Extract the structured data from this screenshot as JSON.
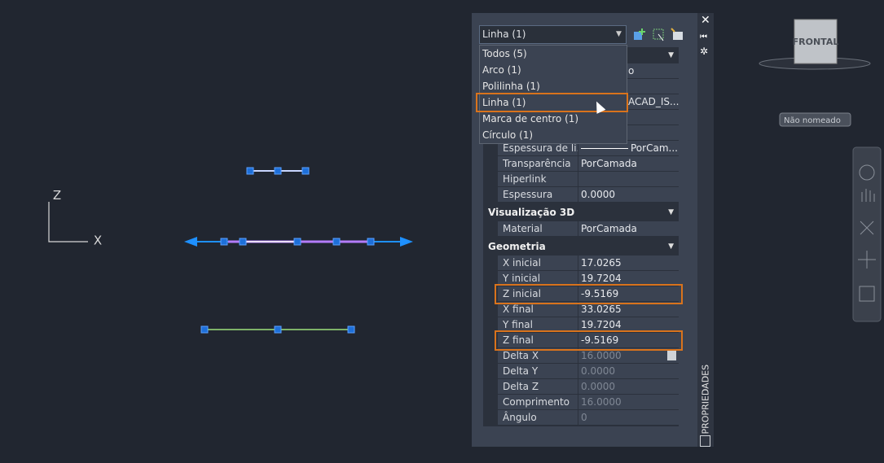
{
  "canvas": {
    "axis_z": "Z",
    "axis_x": "X",
    "viewcube": "FRONTAL",
    "view_name": "Não nomeado"
  },
  "palette": {
    "title": "PROPRIEDADES",
    "dropdown": {
      "selected": "Linha (1)",
      "options": [
        "Todos (5)",
        "Arco (1)",
        "Polilinha (1)",
        "Linha (1)",
        "Marca de centro (1)",
        "Círculo (1)"
      ]
    },
    "hidden_values": [
      "o",
      "ACAD_IS..."
    ],
    "general_rows": [
      {
        "label": "Espessura de li...",
        "value": "PorCam..."
      },
      {
        "label": "Transparência",
        "value": "PorCamada"
      },
      {
        "label": "Hiperlink",
        "value": ""
      },
      {
        "label": "Espessura",
        "value": "0.0000"
      }
    ],
    "sections": [
      {
        "title": "Visualização 3D",
        "rows": [
          {
            "label": "Material",
            "value": "PorCamada"
          }
        ]
      },
      {
        "title": "Geometria",
        "rows": [
          {
            "label": "X inicial",
            "value": "17.0265"
          },
          {
            "label": "Y inicial",
            "value": "19.7204"
          },
          {
            "label": "Z inicial",
            "value": "-9.5169"
          },
          {
            "label": "X final",
            "value": "33.0265"
          },
          {
            "label": "Y final",
            "value": "19.7204"
          },
          {
            "label": "Z final",
            "value": "-9.5169"
          },
          {
            "label": "Delta X",
            "value": "16.0000"
          },
          {
            "label": "Delta Y",
            "value": "0.0000"
          },
          {
            "label": "Delta Z",
            "value": "0.0000"
          },
          {
            "label": "Comprimento",
            "value": "16.0000"
          },
          {
            "label": "Ângulo",
            "value": "0"
          }
        ]
      }
    ]
  }
}
